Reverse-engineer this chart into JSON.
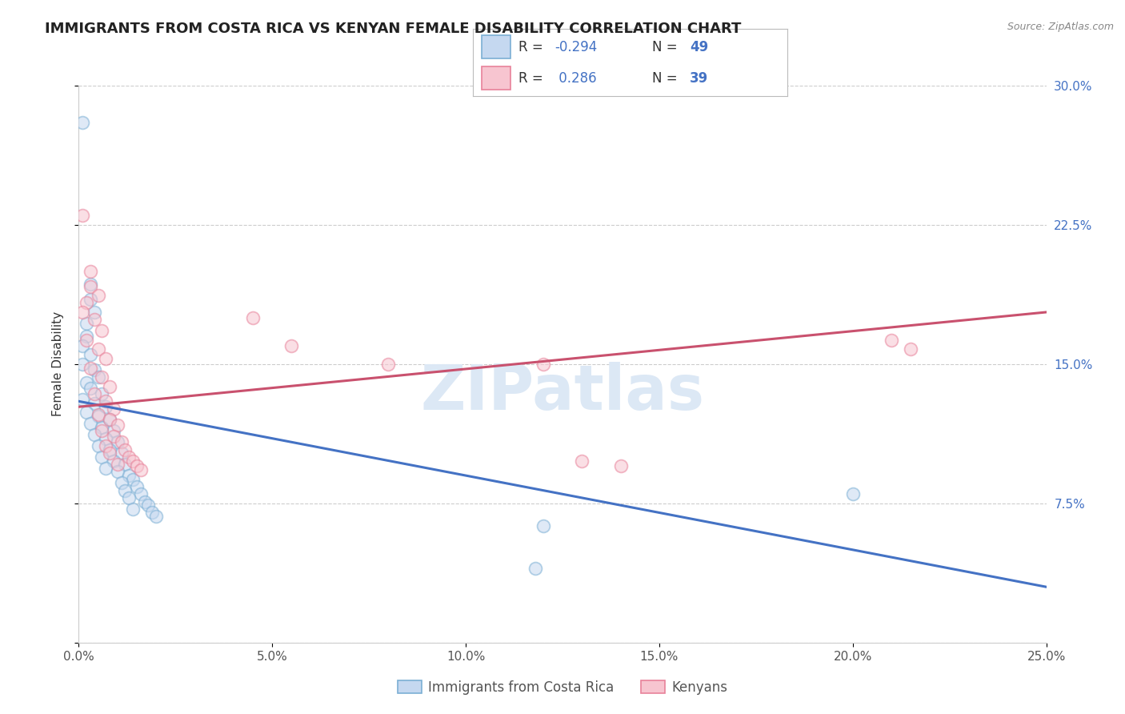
{
  "title": "IMMIGRANTS FROM COSTA RICA VS KENYAN FEMALE DISABILITY CORRELATION CHART",
  "source": "Source: ZipAtlas.com",
  "ylabel": "Female Disability",
  "xlim": [
    0.0,
    0.25
  ],
  "ylim": [
    0.0,
    0.3
  ],
  "xticks": [
    0.0,
    0.05,
    0.1,
    0.15,
    0.2,
    0.25
  ],
  "yticks": [
    0.0,
    0.075,
    0.15,
    0.225,
    0.3
  ],
  "blue_scatter": [
    [
      0.001,
      0.28
    ],
    [
      0.003,
      0.193
    ],
    [
      0.003,
      0.185
    ],
    [
      0.004,
      0.178
    ],
    [
      0.002,
      0.172
    ],
    [
      0.002,
      0.165
    ],
    [
      0.001,
      0.16
    ],
    [
      0.003,
      0.155
    ],
    [
      0.001,
      0.15
    ],
    [
      0.004,
      0.147
    ],
    [
      0.005,
      0.143
    ],
    [
      0.002,
      0.14
    ],
    [
      0.003,
      0.137
    ],
    [
      0.006,
      0.134
    ],
    [
      0.001,
      0.131
    ],
    [
      0.004,
      0.129
    ],
    [
      0.007,
      0.127
    ],
    [
      0.002,
      0.124
    ],
    [
      0.005,
      0.122
    ],
    [
      0.008,
      0.12
    ],
    [
      0.003,
      0.118
    ],
    [
      0.006,
      0.116
    ],
    [
      0.009,
      0.114
    ],
    [
      0.004,
      0.112
    ],
    [
      0.007,
      0.11
    ],
    [
      0.01,
      0.108
    ],
    [
      0.005,
      0.106
    ],
    [
      0.008,
      0.104
    ],
    [
      0.011,
      0.102
    ],
    [
      0.006,
      0.1
    ],
    [
      0.009,
      0.098
    ],
    [
      0.012,
      0.096
    ],
    [
      0.007,
      0.094
    ],
    [
      0.01,
      0.092
    ],
    [
      0.013,
      0.09
    ],
    [
      0.014,
      0.088
    ],
    [
      0.011,
      0.086
    ],
    [
      0.015,
      0.084
    ],
    [
      0.012,
      0.082
    ],
    [
      0.016,
      0.08
    ],
    [
      0.013,
      0.078
    ],
    [
      0.017,
      0.076
    ],
    [
      0.018,
      0.074
    ],
    [
      0.014,
      0.072
    ],
    [
      0.019,
      0.07
    ],
    [
      0.02,
      0.068
    ],
    [
      0.12,
      0.063
    ],
    [
      0.2,
      0.08
    ],
    [
      0.118,
      0.04
    ]
  ],
  "pink_scatter": [
    [
      0.001,
      0.23
    ],
    [
      0.003,
      0.2
    ],
    [
      0.003,
      0.192
    ],
    [
      0.005,
      0.187
    ],
    [
      0.002,
      0.183
    ],
    [
      0.001,
      0.178
    ],
    [
      0.004,
      0.174
    ],
    [
      0.006,
      0.168
    ],
    [
      0.002,
      0.163
    ],
    [
      0.005,
      0.158
    ],
    [
      0.007,
      0.153
    ],
    [
      0.003,
      0.148
    ],
    [
      0.006,
      0.143
    ],
    [
      0.008,
      0.138
    ],
    [
      0.004,
      0.134
    ],
    [
      0.007,
      0.13
    ],
    [
      0.009,
      0.126
    ],
    [
      0.005,
      0.123
    ],
    [
      0.008,
      0.12
    ],
    [
      0.01,
      0.117
    ],
    [
      0.006,
      0.114
    ],
    [
      0.009,
      0.111
    ],
    [
      0.011,
      0.108
    ],
    [
      0.007,
      0.106
    ],
    [
      0.012,
      0.104
    ],
    [
      0.008,
      0.102
    ],
    [
      0.013,
      0.1
    ],
    [
      0.014,
      0.098
    ],
    [
      0.01,
      0.096
    ],
    [
      0.015,
      0.095
    ],
    [
      0.016,
      0.093
    ],
    [
      0.045,
      0.175
    ],
    [
      0.055,
      0.16
    ],
    [
      0.08,
      0.15
    ],
    [
      0.12,
      0.15
    ],
    [
      0.13,
      0.098
    ],
    [
      0.14,
      0.095
    ],
    [
      0.21,
      0.163
    ],
    [
      0.215,
      0.158
    ]
  ],
  "blue_line_x": [
    0.0,
    0.25
  ],
  "blue_line_y": [
    0.13,
    0.03
  ],
  "pink_line_x": [
    0.0,
    0.25
  ],
  "pink_line_y": [
    0.127,
    0.178
  ],
  "scatter_size": 130,
  "scatter_alpha": 0.55,
  "scatter_linewidth": 1.3,
  "blue_face": "#c5d8f0",
  "blue_edge": "#7bafd4",
  "pink_face": "#f7c5d0",
  "pink_edge": "#e8829a",
  "line_blue": "#4472c4",
  "line_pink": "#c9516e",
  "background_color": "#ffffff",
  "grid_color": "#cccccc",
  "watermark": "ZIPatlas",
  "title_fontsize": 13,
  "axis_label_fontsize": 11,
  "tick_fontsize": 11,
  "source_text": "Source: ZipAtlas.com",
  "legend1_R1": "-0.294",
  "legend1_N1": "49",
  "legend1_R2": "0.286",
  "legend1_N2": "39",
  "legend2_labels": [
    "Immigrants from Costa Rica",
    "Kenyans"
  ]
}
